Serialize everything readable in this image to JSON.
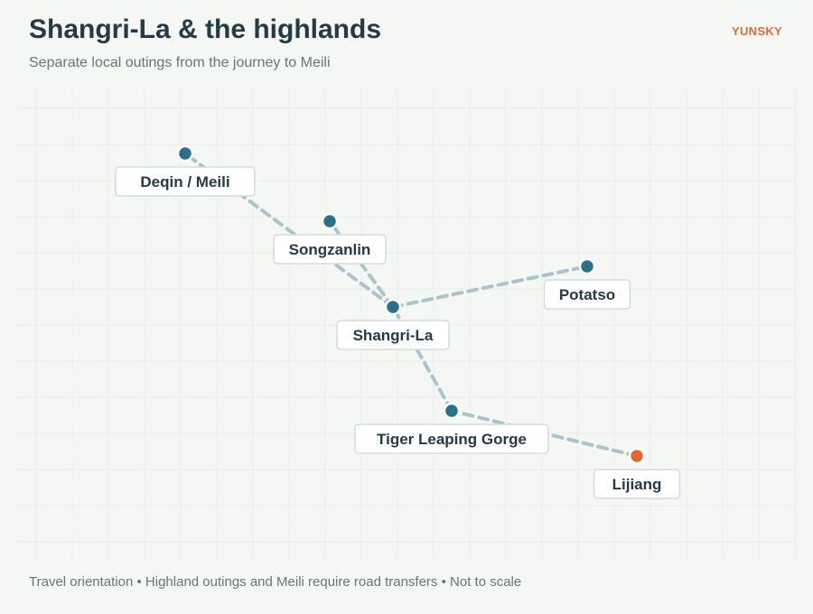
{
  "header": {
    "title": "Shangri-La & the highlands",
    "brand": "YUNSKY",
    "subtitle": "Separate local outings from the journey to Meili"
  },
  "footer": {
    "text": "Travel orientation • Highland outings and Meili require road transfers • Not to scale"
  },
  "colors": {
    "background": "#f5f7f5",
    "grid": "#e8edea",
    "route": "#a9c5ca",
    "node": "#2a7088",
    "origin_node": "#e06a30",
    "label_border": "#d3dcdd",
    "text": "#243a45",
    "brand": "#d2703a"
  },
  "nodes": [
    {
      "id": "deqin",
      "label": "Deqin / Meili",
      "type": "destination"
    },
    {
      "id": "songzanlin",
      "label": "Songzanlin",
      "type": "destination"
    },
    {
      "id": "potatso",
      "label": "Potatso",
      "type": "destination"
    },
    {
      "id": "shangrila",
      "label": "Shangri-La",
      "type": "hub"
    },
    {
      "id": "tiger",
      "label": "Tiger Leaping Gorge",
      "type": "destination"
    },
    {
      "id": "lijiang",
      "label": "Lijiang",
      "type": "origin"
    }
  ],
  "routes": [
    {
      "from": "lijiang",
      "to": "tiger"
    },
    {
      "from": "tiger",
      "to": "shangrila"
    },
    {
      "from": "shangrila",
      "to": "songzanlin"
    },
    {
      "from": "shangrila",
      "to": "potatso"
    },
    {
      "from": "shangrila",
      "to": "deqin"
    }
  ]
}
